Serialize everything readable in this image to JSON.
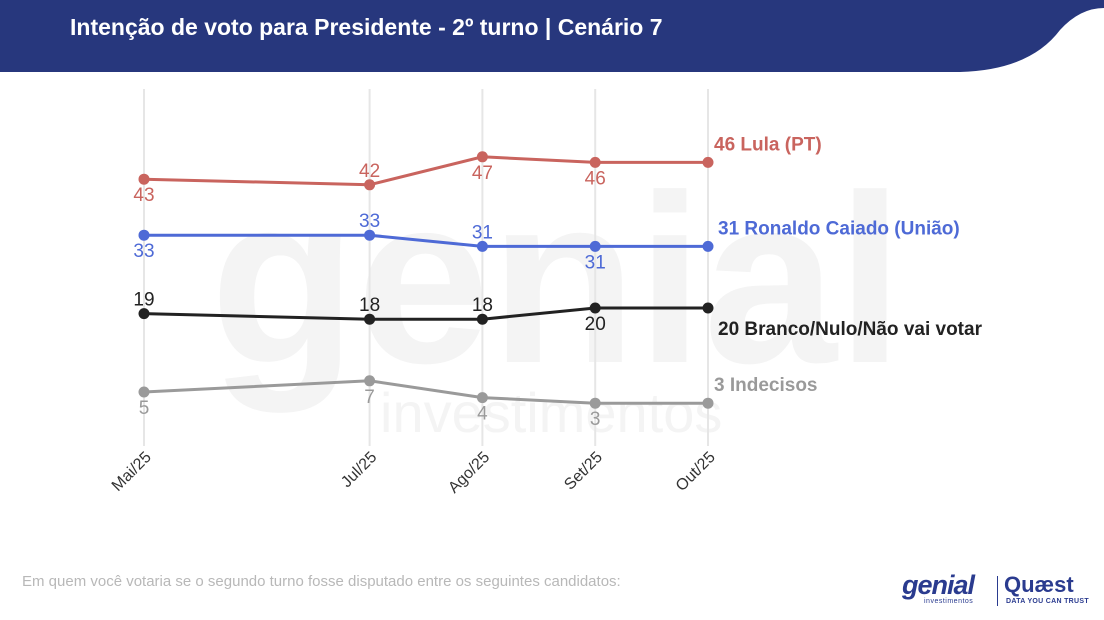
{
  "header": {
    "title": "Intenção de voto para Presidente - 2º turno | Cenário 7"
  },
  "footnote": "Em quem você votaria se o segundo turno fosse disputado entre os seguintes candidatos:",
  "logos": {
    "genial": "genial",
    "genial_sub": "investimentos",
    "quaest": "Quæst",
    "quaest_sub": "DATA YOU CAN TRUST"
  },
  "watermark": {
    "word": "genial",
    "sub": "investimentos"
  },
  "colors": {
    "header_bg": "#27377d",
    "grid": "#e6e6e6"
  },
  "chart_data": {
    "type": "line",
    "categories": [
      "Mai/25",
      "Jul/25",
      "Ago/25",
      "Set/25",
      "Out/25"
    ],
    "x_months": [
      0,
      2,
      3,
      4,
      5
    ],
    "ylim": [
      0,
      50
    ],
    "grid": "vertical",
    "series": [
      {
        "name": "Lula (PT)",
        "label": "46 Lula (PT)",
        "color": "#c9645e",
        "values": [
          43,
          42,
          47,
          46,
          46
        ],
        "label_pos": [
          "below",
          "above",
          "below",
          "below",
          null
        ]
      },
      {
        "name": "Ronaldo Caiado (União)",
        "label": "31 Ronaldo Caiado (União)",
        "color": "#4e6ad6",
        "values": [
          33,
          33,
          31,
          31,
          31
        ],
        "label_pos": [
          "below",
          "above",
          "above",
          "below",
          null
        ]
      },
      {
        "name": "Branco/Nulo/Não vai votar",
        "label": "20 Branco/Nulo/Não vai votar",
        "color": "#222222",
        "values": [
          19,
          18,
          18,
          20,
          20
        ],
        "label_pos": [
          "above",
          "above",
          "above",
          "below",
          null
        ]
      },
      {
        "name": "Indecisos",
        "label": "3 Indecisos",
        "color": "#9a9a9a",
        "values": [
          5,
          7,
          4,
          3,
          3
        ],
        "label_pos": [
          "below",
          "below",
          "below",
          "below",
          null
        ]
      }
    ]
  }
}
